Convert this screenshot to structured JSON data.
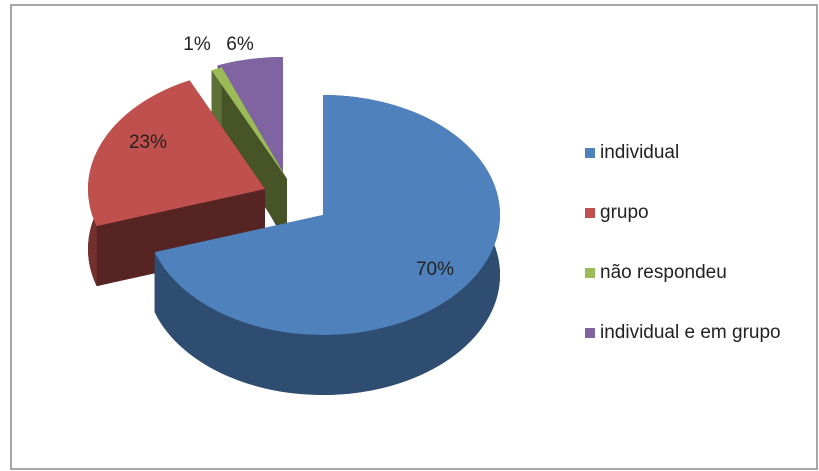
{
  "chart_data": {
    "type": "pie",
    "categories": [
      "individual",
      "grupo",
      "não respondeu",
      "individual e em grupo"
    ],
    "values": [
      70,
      23,
      1,
      6
    ],
    "value_labels": [
      "70%",
      "23%",
      "1%",
      "6%"
    ],
    "colors": [
      "#4f81bd",
      "#c0504d",
      "#9bbb59",
      "#8064a2"
    ],
    "legend": "right"
  }
}
